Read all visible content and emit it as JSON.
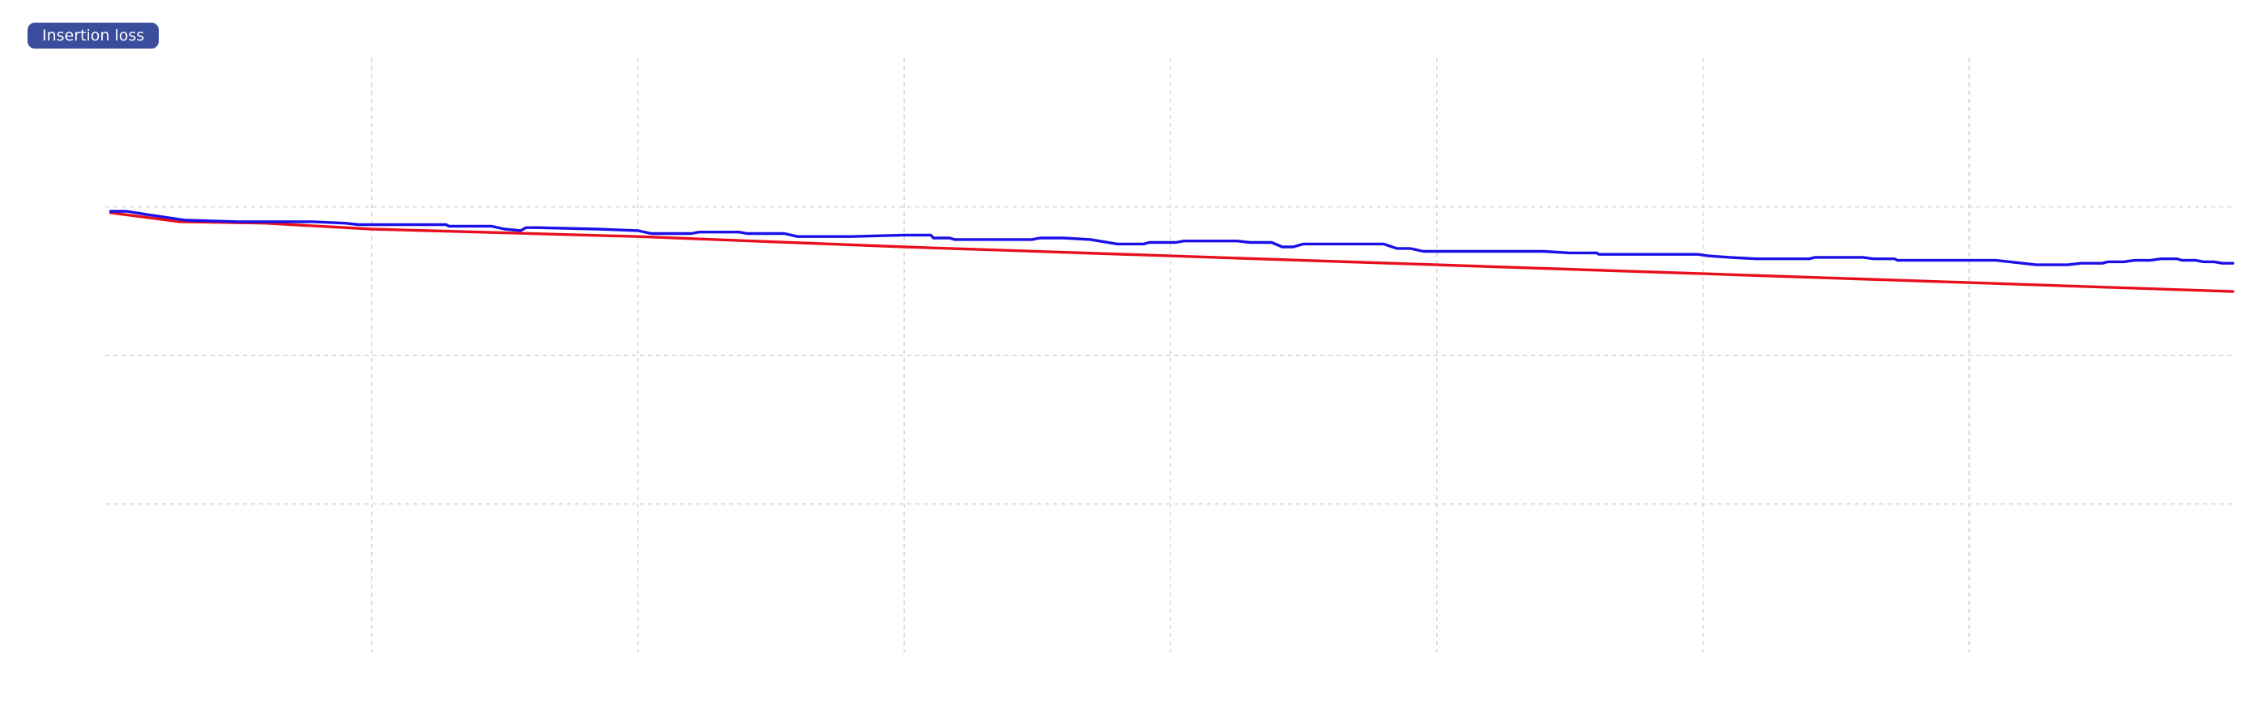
{
  "header": {
    "tag_label": "Insertion loss"
  },
  "colors": {
    "tag_background": "#3a4c9c",
    "measured": "#1b10e8",
    "limit": "#e8101e",
    "grid": "#d2d2d2"
  },
  "chart_data": {
    "type": "line",
    "title": "",
    "xlabel": "",
    "ylabel": "",
    "xlim": [
      0,
      8
    ],
    "ylim": [
      -3,
      1
    ],
    "grid": true,
    "x_gridlines": [
      1,
      2,
      3,
      4,
      5,
      6,
      7
    ],
    "y_gridlines": [
      0,
      -1,
      -2
    ],
    "series": [
      {
        "color": "#1b10e8",
        "points": [
          [
            0.02,
            -0.03
          ],
          [
            0.08,
            -0.03
          ],
          [
            0.15,
            -0.05
          ],
          [
            0.3,
            -0.09
          ],
          [
            0.5,
            -0.1
          ],
          [
            0.78,
            -0.1
          ],
          [
            0.9,
            -0.11
          ],
          [
            0.95,
            -0.12
          ],
          [
            1.0,
            -0.12
          ],
          [
            1.28,
            -0.12
          ],
          [
            1.29,
            -0.13
          ],
          [
            1.45,
            -0.13
          ],
          [
            1.5,
            -0.15
          ],
          [
            1.56,
            -0.16
          ],
          [
            1.58,
            -0.14
          ],
          [
            1.62,
            -0.14
          ],
          [
            1.85,
            -0.15
          ],
          [
            2.0,
            -0.16
          ],
          [
            2.05,
            -0.18
          ],
          [
            2.2,
            -0.18
          ],
          [
            2.23,
            -0.17
          ],
          [
            2.38,
            -0.17
          ],
          [
            2.41,
            -0.18
          ],
          [
            2.55,
            -0.18
          ],
          [
            2.6,
            -0.2
          ],
          [
            2.8,
            -0.2
          ],
          [
            3.0,
            -0.19
          ],
          [
            3.1,
            -0.19
          ],
          [
            3.11,
            -0.21
          ],
          [
            3.17,
            -0.21
          ],
          [
            3.19,
            -0.22
          ],
          [
            3.48,
            -0.22
          ],
          [
            3.51,
            -0.21
          ],
          [
            3.6,
            -0.21
          ],
          [
            3.7,
            -0.22
          ],
          [
            3.8,
            -0.25
          ],
          [
            3.9,
            -0.25
          ],
          [
            3.92,
            -0.24
          ],
          [
            4.02,
            -0.24
          ],
          [
            4.05,
            -0.23
          ],
          [
            4.25,
            -0.23
          ],
          [
            4.3,
            -0.24
          ],
          [
            4.38,
            -0.24
          ],
          [
            4.42,
            -0.27
          ],
          [
            4.46,
            -0.27
          ],
          [
            4.5,
            -0.25
          ],
          [
            4.6,
            -0.25
          ],
          [
            4.8,
            -0.25
          ],
          [
            4.85,
            -0.28
          ],
          [
            4.9,
            -0.28
          ],
          [
            4.95,
            -0.3
          ],
          [
            5.1,
            -0.3
          ],
          [
            5.3,
            -0.3
          ],
          [
            5.4,
            -0.3
          ],
          [
            5.5,
            -0.31
          ],
          [
            5.6,
            -0.31
          ],
          [
            5.61,
            -0.32
          ],
          [
            5.75,
            -0.32
          ],
          [
            5.98,
            -0.32
          ],
          [
            6.02,
            -0.33
          ],
          [
            6.1,
            -0.34
          ],
          [
            6.2,
            -0.35
          ],
          [
            6.4,
            -0.35
          ],
          [
            6.42,
            -0.34
          ],
          [
            6.6,
            -0.34
          ],
          [
            6.64,
            -0.35
          ],
          [
            6.72,
            -0.35
          ],
          [
            6.73,
            -0.36
          ],
          [
            6.85,
            -0.36
          ],
          [
            7.0,
            -0.36
          ],
          [
            7.1,
            -0.36
          ],
          [
            7.2,
            -0.38
          ],
          [
            7.25,
            -0.39
          ],
          [
            7.37,
            -0.39
          ],
          [
            7.42,
            -0.38
          ],
          [
            7.5,
            -0.38
          ],
          [
            7.52,
            -0.37
          ],
          [
            7.58,
            -0.37
          ],
          [
            7.62,
            -0.36
          ],
          [
            7.68,
            -0.36
          ],
          [
            7.72,
            -0.35
          ],
          [
            7.78,
            -0.35
          ],
          [
            7.8,
            -0.36
          ],
          [
            7.85,
            -0.36
          ],
          [
            7.88,
            -0.37
          ],
          [
            7.92,
            -0.37
          ],
          [
            7.95,
            -0.38
          ],
          [
            7.99,
            -0.38
          ]
        ]
      },
      {
        "color": "#e8101e",
        "points": [
          [
            0.02,
            -0.04
          ],
          [
            0.28,
            -0.1
          ],
          [
            0.6,
            -0.11
          ],
          [
            1.0,
            -0.15
          ],
          [
            2.0,
            -0.2
          ],
          [
            3.0,
            -0.27
          ],
          [
            4.0,
            -0.33
          ],
          [
            5.0,
            -0.39
          ],
          [
            6.0,
            -0.45
          ],
          [
            7.0,
            -0.51
          ],
          [
            7.99,
            -0.57
          ]
        ]
      }
    ]
  }
}
